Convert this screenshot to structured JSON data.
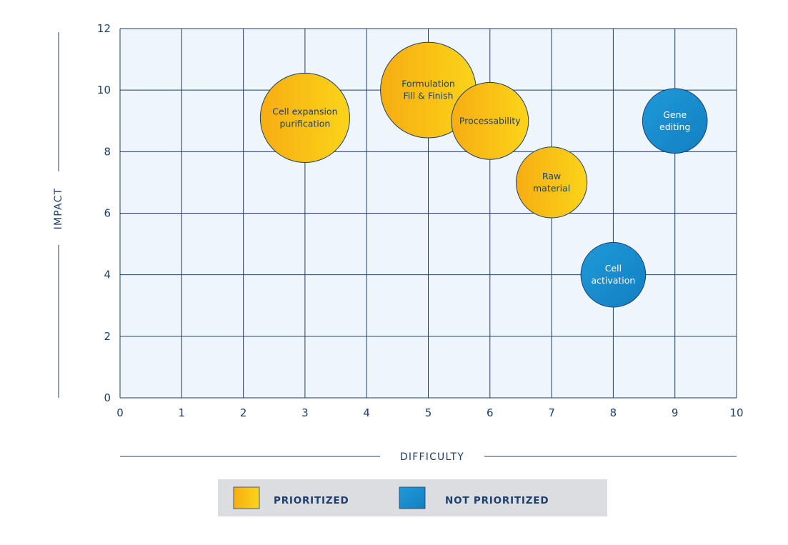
{
  "chart_data": {
    "type": "scatter",
    "xlabel": "DIFFICULTY",
    "ylabel": "IMPACT",
    "xlim": [
      0,
      10
    ],
    "ylim": [
      0,
      12
    ],
    "xticks": [
      "0",
      "1",
      "2",
      "3",
      "4",
      "5",
      "6",
      "7",
      "8",
      "9",
      "10"
    ],
    "yticks": [
      "0",
      "2",
      "4",
      "6",
      "8",
      "10",
      "12"
    ],
    "grid": true,
    "legend_position": "bottom",
    "series": [
      {
        "name": "PRIORITIZED",
        "color": "#f5b90e",
        "points": [
          {
            "label": [
              "Cell expansion",
              "purification"
            ],
            "x": 3,
            "y": 9.1,
            "size": 1.45
          },
          {
            "label": [
              "Formulation",
              "Fill & Finish"
            ],
            "x": 5,
            "y": 10,
            "size": 1.55
          },
          {
            "label": [
              "Processability"
            ],
            "x": 6,
            "y": 9,
            "size": 1.25
          },
          {
            "label": [
              "Raw",
              "material"
            ],
            "x": 7,
            "y": 7,
            "size": 1.15
          }
        ]
      },
      {
        "name": "NOT PRIORITIZED",
        "color": "#1b8fd0",
        "points": [
          {
            "label": [
              "Gene",
              "editing"
            ],
            "x": 9,
            "y": 9,
            "size": 1.05
          },
          {
            "label": [
              "Cell",
              "activation"
            ],
            "x": 8,
            "y": 4,
            "size": 1.05
          }
        ]
      }
    ]
  }
}
